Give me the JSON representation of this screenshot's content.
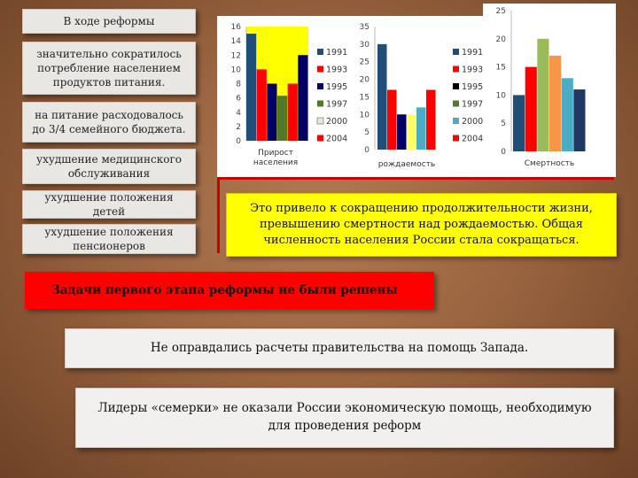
{
  "left_boxes": [
    "В ходе реформы",
    "значительно сократилось потребление населением продуктов питания.",
    "на питание расходовалось до 3/4 семейного бюджета.",
    "ухудшение медицинского обслуживания",
    "ухудшение положения детей",
    "ухудшение положения пенсионеров"
  ],
  "conclusion": "Это привело к сокращению продолжительности жизни, превышению смертности над рождаемостью. Общая численность населения России стала сокращаться.",
  "tasks_banner": "Задачи первого этапа реформы не были решены",
  "statement_west": "Не оправдались расчеты правительства на помощь Запада.",
  "statement_g7": "Лидеры «семерки» не оказали России экономическую помощь, необходимую для проведения реформ",
  "series_colors": {
    "1991": "#1f4e79",
    "1993": "#ff0000",
    "1995": "#000066",
    "1997": "#4f7a28",
    "2000": "#e8e8d8",
    "2004": "#ff0000"
  },
  "chart_data": [
    {
      "type": "bar",
      "categories": [
        "Прирост населения"
      ],
      "series": [
        {
          "name": "1991",
          "values": [
            15
          ],
          "color": "#1f4e79"
        },
        {
          "name": "1993",
          "values": [
            10
          ],
          "color": "#ff0000"
        },
        {
          "name": "1995",
          "values": [
            8
          ],
          "color": "#000066"
        },
        {
          "name": "1997",
          "values": [
            6.3
          ],
          "color": "#4f7a28"
        },
        {
          "name": "2000",
          "values": [
            8
          ],
          "color": "#ff0000"
        },
        {
          "name": "2004",
          "values": [
            12
          ],
          "color": "#000066"
        }
      ],
      "background": "#ffff00",
      "ylim": [
        0,
        16
      ],
      "yticks": [
        0,
        2,
        4,
        6,
        8,
        10,
        12,
        14,
        16
      ],
      "legend": [
        "1991",
        "1993",
        "1995",
        "1997",
        "2000",
        "2004"
      ],
      "legend_colors": [
        "#1f4e79",
        "#ff0000",
        "#000066",
        "#4f7a28",
        "#e8e8d8",
        "#ff0000"
      ],
      "legend_placement": "right"
    },
    {
      "type": "bar",
      "categories": [
        "рождаемость"
      ],
      "series": [
        {
          "name": "1991",
          "values": [
            30
          ],
          "color": "#1f4e79"
        },
        {
          "name": "1993",
          "values": [
            17
          ],
          "color": "#ff0000"
        },
        {
          "name": "1995",
          "values": [
            10
          ],
          "color": "#000066"
        },
        {
          "name": "1997",
          "values": [
            10
          ],
          "color": "#ffff66"
        },
        {
          "name": "2000",
          "values": [
            12
          ],
          "color": "#4bacc6"
        },
        {
          "name": "2004",
          "values": [
            17
          ],
          "color": "#ff0000"
        }
      ],
      "ylim": [
        0,
        35
      ],
      "yticks": [
        0,
        5,
        10,
        15,
        20,
        25,
        30,
        35
      ],
      "legend": [
        "1991",
        "1993",
        "1995",
        "1997",
        "2000",
        "2004"
      ],
      "legend_colors": [
        "#1f4e79",
        "#ff0000",
        "#000000",
        "#4f7a28",
        "#4bacc6",
        "#ff0000"
      ],
      "legend_placement": "right"
    },
    {
      "type": "bar",
      "categories": [
        "Смертность"
      ],
      "series": [
        {
          "name": "1991",
          "values": [
            10
          ],
          "color": "#1f4e79"
        },
        {
          "name": "1993",
          "values": [
            15
          ],
          "color": "#ff0000"
        },
        {
          "name": "1995",
          "values": [
            20
          ],
          "color": "#9bbb59"
        },
        {
          "name": "1997",
          "values": [
            17
          ],
          "color": "#f79646"
        },
        {
          "name": "2000",
          "values": [
            13
          ],
          "color": "#4bacc6"
        },
        {
          "name": "2004",
          "values": [
            11
          ],
          "color": "#1f3864"
        }
      ],
      "ylim": [
        0,
        25
      ],
      "yticks": [
        0,
        5,
        10,
        15,
        20,
        25
      ]
    }
  ]
}
